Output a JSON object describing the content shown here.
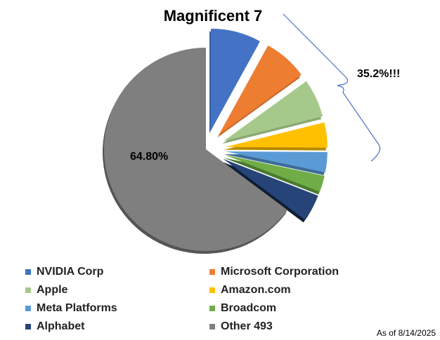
{
  "chart_data": {
    "type": "pie",
    "title": "Magnificent 7",
    "categories": [
      "NVIDIA Corp",
      "Microsoft Corporation",
      "Apple",
      "Amazon.com",
      "Meta Platforms",
      "Broadcom",
      "Alphabet",
      "Other 493"
    ],
    "values": [
      8.0,
      7.0,
      6.1,
      4.0,
      3.2,
      2.6,
      4.3,
      64.8
    ],
    "colors": [
      "#4472c4",
      "#ed7d31",
      "#a5c98a",
      "#ffc000",
      "#5b9bd5",
      "#70ad47",
      "#264478",
      "#7f7f7f"
    ],
    "edge_colors": [
      "#3a62a8",
      "#c9692a",
      "#8aa874",
      "#b88a00",
      "#3c6c97",
      "#4b7a30",
      "#111d33",
      "#555555"
    ],
    "exploded": [
      true,
      true,
      true,
      true,
      true,
      true,
      true,
      false
    ],
    "data_labels": {
      "other": "64.80%",
      "group": "35.2%!!!"
    },
    "legend_position": "bottom",
    "note": "As of 8/14/2025"
  }
}
